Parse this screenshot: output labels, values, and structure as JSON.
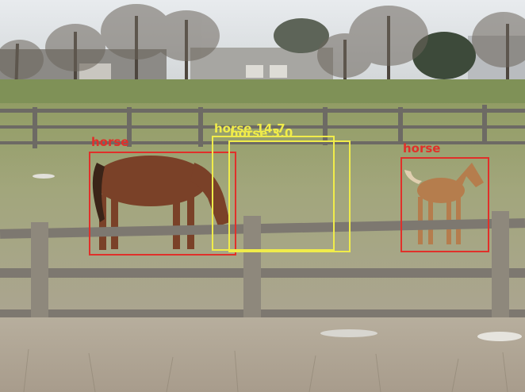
{
  "detections": [
    {
      "label": "horse",
      "color": "#e0302a"
    },
    {
      "label": "horse 14.7",
      "color": "#f0ec4a"
    },
    {
      "label": "horse 3.0",
      "color": "#f0ec4a"
    },
    {
      "label": "horse",
      "color": "#e0302a"
    }
  ]
}
